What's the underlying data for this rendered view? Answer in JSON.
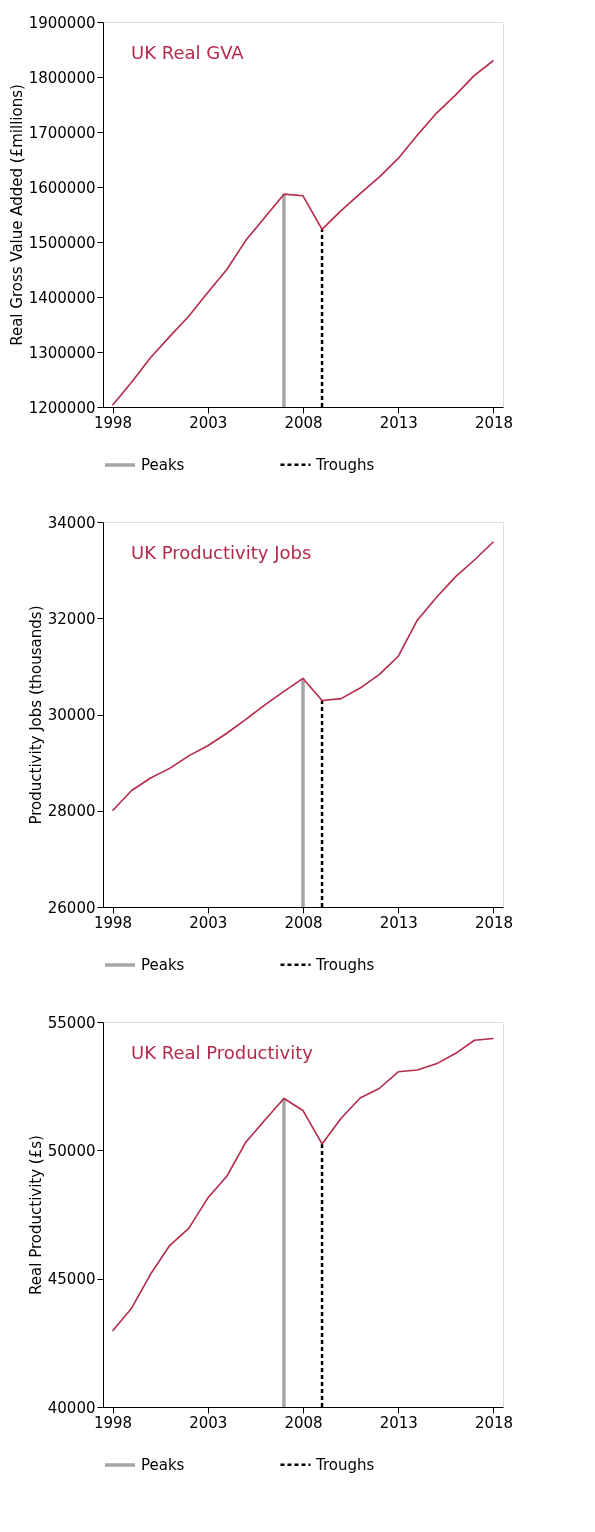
{
  "chart_data": [
    {
      "type": "line",
      "title": "UK Real GVA",
      "ylabel": "Real Gross Value Added (£millions)",
      "x": [
        1998,
        1999,
        2000,
        2001,
        2002,
        2003,
        2004,
        2005,
        2006,
        2007,
        2008,
        2009,
        2010,
        2011,
        2012,
        2013,
        2014,
        2015,
        2016,
        2017,
        2018
      ],
      "xlim": [
        1997.5,
        2018.5
      ],
      "xticks": [
        1998,
        2003,
        2008,
        2013,
        2018
      ],
      "ylim": [
        1200000,
        1900000
      ],
      "yticks": [
        1200000,
        1300000,
        1400000,
        1500000,
        1600000,
        1700000,
        1800000,
        1900000
      ],
      "grid": false,
      "legend": "bottom",
      "marker": "none",
      "line_style": "solid",
      "series": [
        {
          "color": "#b5294a",
          "values": [
            1203000,
            1245000,
            1290000,
            1328000,
            1365000,
            1408000,
            1450000,
            1503000,
            1545000,
            1587000,
            1584000,
            1523000,
            1557000,
            1588000,
            1618000,
            1652000,
            1694000,
            1734000,
            1767000,
            1803000,
            1830000
          ]
        }
      ],
      "ref_lines": [
        {
          "axis": "x",
          "value": 2007,
          "label": "Peaks",
          "color": "#a6a6a6",
          "line_style": "solid"
        },
        {
          "axis": "x",
          "value": 2009,
          "label": "Troughs",
          "color": "#000000",
          "line_style": "dashed"
        }
      ]
    },
    {
      "type": "line",
      "title": "UK Productivity Jobs",
      "ylabel": "Productivity Jobs (thousands)",
      "x": [
        1998,
        1999,
        2000,
        2001,
        2002,
        2003,
        2004,
        2005,
        2006,
        2007,
        2008,
        2009,
        2010,
        2011,
        2012,
        2013,
        2014,
        2015,
        2016,
        2017,
        2018
      ],
      "xlim": [
        1997.5,
        2018.5
      ],
      "xticks": [
        1998,
        2003,
        2008,
        2013,
        2018
      ],
      "ylim": [
        26000,
        34000
      ],
      "yticks": [
        26000,
        28000,
        30000,
        32000,
        34000
      ],
      "grid": false,
      "legend": "bottom",
      "marker": "none",
      "line_style": "solid",
      "series": [
        {
          "color": "#b5294a",
          "values": [
            28000,
            28420,
            28680,
            28880,
            29140,
            29350,
            29610,
            29900,
            30200,
            30480,
            30750,
            30290,
            30330,
            30550,
            30830,
            31210,
            31960,
            32430,
            32860,
            33210,
            33590
          ]
        }
      ],
      "ref_lines": [
        {
          "axis": "x",
          "value": 2008,
          "label": "Peaks",
          "color": "#a6a6a6",
          "line_style": "solid"
        },
        {
          "axis": "x",
          "value": 2009,
          "label": "Troughs",
          "color": "#000000",
          "line_style": "dashed"
        }
      ]
    },
    {
      "type": "line",
      "title": "UK Real Productivity",
      "ylabel": "Real Productivity (£s)",
      "x": [
        1998,
        1999,
        2000,
        2001,
        2002,
        2003,
        2004,
        2005,
        2006,
        2007,
        2008,
        2009,
        2010,
        2011,
        2012,
        2013,
        2014,
        2015,
        2016,
        2017,
        2018
      ],
      "xlim": [
        1997.5,
        2018.5
      ],
      "xticks": [
        1998,
        2003,
        2008,
        2013,
        2018
      ],
      "ylim": [
        40000,
        55000
      ],
      "yticks": [
        40000,
        45000,
        50000,
        55000
      ],
      "grid": false,
      "legend": "bottom",
      "marker": "none",
      "line_style": "solid",
      "series": [
        {
          "color": "#b5294a",
          "values": [
            42960,
            43850,
            45180,
            46290,
            46960,
            48140,
            48990,
            50320,
            51180,
            52020,
            51550,
            50250,
            51250,
            52040,
            52410,
            53060,
            53130,
            53370,
            53770,
            54290,
            54360
          ]
        }
      ],
      "ref_lines": [
        {
          "axis": "x",
          "value": 2007,
          "label": "Peaks",
          "color": "#a6a6a6",
          "line_style": "solid"
        },
        {
          "axis": "x",
          "value": 2009,
          "label": "Troughs",
          "color": "#000000",
          "line_style": "dashed"
        }
      ]
    }
  ]
}
